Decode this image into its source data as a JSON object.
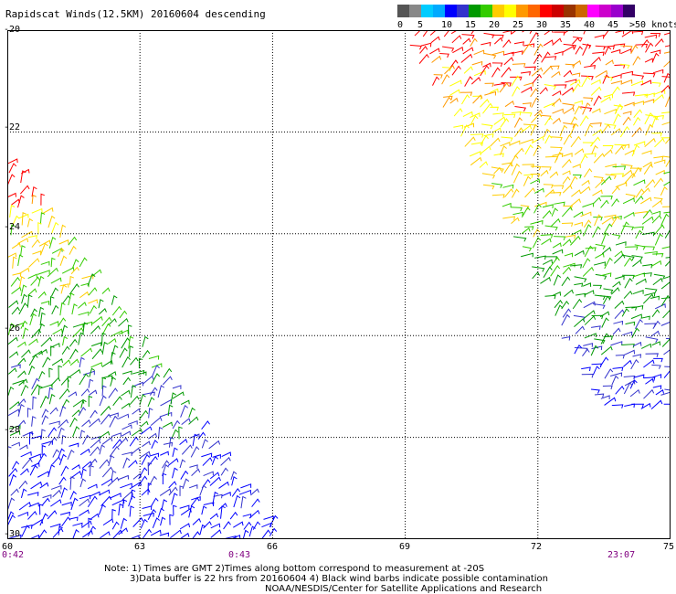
{
  "title": "Rapidscat Winds(12.5KM) 20160604 descending",
  "legend": {
    "colors": [
      "#555555",
      "#888888",
      "#00ccff",
      "#00aaff",
      "#0000ff",
      "#3333cc",
      "#009900",
      "#33cc00",
      "#ffcc00",
      "#ffff00",
      "#ff9900",
      "#ff6600",
      "#ff0000",
      "#cc0000",
      "#993300",
      "#cc6600",
      "#ff00ff",
      "#cc00cc",
      "#9900cc",
      "#330066"
    ],
    "tick_labels": [
      "0",
      "5",
      "10",
      "15",
      "20",
      "25",
      "30",
      "35",
      "40",
      "45",
      ">50 knots"
    ]
  },
  "axes": {
    "y_labels": [
      "-20",
      "-22",
      "-24",
      "-26",
      "-28",
      "-30"
    ],
    "x_labels": [
      "60",
      "63",
      "66",
      "69",
      "72",
      "75"
    ],
    "time_labels": [
      "0:42",
      "0:43",
      "23:07"
    ]
  },
  "notes": {
    "line1": "Note: 1) Times are GMT 2)Times along bottom correspond to measurement at -20S",
    "line2": "3)Data buffer is 22 hrs from 20160604 4) Black wind barbs indicate possible contamination",
    "line3": "NOAA/NESDIS/Center for Satellite Applications and Research"
  },
  "map_data": {
    "lon_range": [
      60,
      75
    ],
    "lat_range": [
      -30,
      -20
    ],
    "grid": true,
    "swaths": [
      {
        "name": "west",
        "description": "swath lower-left"
      },
      {
        "name": "east",
        "description": "swath upper-right"
      }
    ]
  }
}
